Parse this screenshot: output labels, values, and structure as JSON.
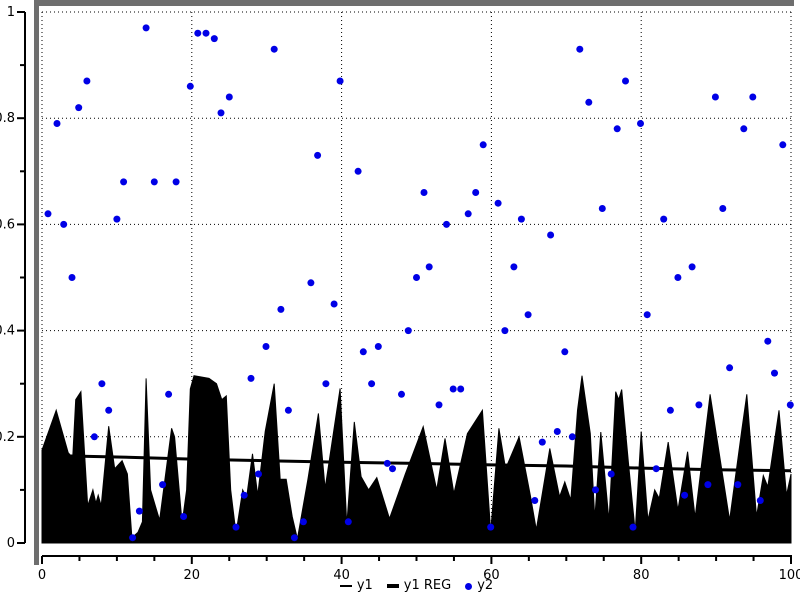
{
  "accent_colors": {
    "scatter_blue": "#0000e6",
    "series_black": "#000000",
    "frame_gray": "#6e6e6e",
    "background": "#ffffff"
  },
  "legend": {
    "items": [
      {
        "label": "y1",
        "marker": "thin-line"
      },
      {
        "label": "y1 REG",
        "marker": "thick-line"
      },
      {
        "label": "y2",
        "marker": "dot"
      }
    ]
  },
  "chart_data": {
    "type": "area",
    "title": "",
    "xlabel": "",
    "ylabel": "",
    "xlim": [
      0,
      100
    ],
    "ylim": [
      0,
      1
    ],
    "grid": "dotted",
    "legend_position": "bottom-center",
    "x_ticks": {
      "major": [
        0,
        20,
        40,
        60,
        80,
        100
      ],
      "labels": [
        "0",
        "20",
        "40",
        "60",
        "80",
        "100"
      ],
      "minor_step": 5
    },
    "y_ticks": {
      "major": [
        0,
        0.2,
        0.4,
        0.6,
        0.8,
        1
      ],
      "labels": [
        "0",
        "0.2",
        "0.4",
        "0.6",
        "0.8",
        "1"
      ],
      "minor_step": 0.1
    },
    "series": [
      {
        "name": "y1",
        "type": "area",
        "color": "#000000",
        "x": [
          0,
          1.9,
          3.5,
          4.1,
          4.5,
          5.2,
          6.1,
          6.8,
          7.2,
          7.5,
          7.9,
          8.9,
          9.7,
          10.7,
          11.4,
          12.0,
          12.8,
          13.4,
          13.9,
          14.5,
          15.7,
          17.3,
          17.7,
          18.7,
          19.3,
          19.8,
          20.3,
          22.3,
          23.3,
          24.0,
          24.6,
          25.2,
          25.9,
          26.8,
          27.3,
          28.1,
          28.8,
          29.8,
          31.0,
          31.8,
          32.6,
          33.4,
          34.1,
          35.5,
          36.9,
          37.8,
          39.8,
          40.7,
          41.7,
          42.6,
          43.6,
          44.7,
          46.4,
          48.5,
          50.9,
          52.7,
          53.8,
          55.0,
          56.8,
          58.8,
          59.9,
          61.0,
          61.9,
          63.7,
          65.2,
          66.0,
          67.8,
          69.1,
          69.8,
          70.6,
          71.5,
          72.1,
          73.2,
          73.8,
          74.6,
          75.7,
          76.6,
          77.0,
          77.4,
          78.3,
          79.2,
          80.0,
          80.9,
          81.8,
          82.4,
          83.6,
          84.9,
          86.2,
          87.2,
          89.2,
          91.8,
          93.4,
          94.1,
          95.4,
          96.3,
          96.9,
          98.4,
          99.4,
          100
        ],
        "y": [
          0.175,
          0.25,
          0.17,
          0.16,
          0.27,
          0.285,
          0.07,
          0.1,
          0.075,
          0.09,
          0.07,
          0.22,
          0.14,
          0.155,
          0.13,
          0.01,
          0.02,
          0.04,
          0.31,
          0.1,
          0.043,
          0.216,
          0.2,
          0.037,
          0.1,
          0.29,
          0.315,
          0.31,
          0.3,
          0.27,
          0.277,
          0.1,
          0.018,
          0.1,
          0.085,
          0.168,
          0.09,
          0.21,
          0.3,
          0.12,
          0.12,
          0.05,
          0.008,
          0.12,
          0.244,
          0.103,
          0.291,
          0.034,
          0.228,
          0.125,
          0.1,
          0.123,
          0.046,
          0.13,
          0.219,
          0.1,
          0.197,
          0.093,
          0.206,
          0.25,
          0.021,
          0.216,
          0.14,
          0.2,
          0.09,
          0.025,
          0.178,
          0.087,
          0.115,
          0.081,
          0.25,
          0.315,
          0.206,
          0.046,
          0.209,
          0.042,
          0.285,
          0.27,
          0.289,
          0.15,
          0.021,
          0.21,
          0.043,
          0.1,
          0.084,
          0.19,
          0.062,
          0.172,
          0.048,
          0.28,
          0.043,
          0.21,
          0.28,
          0.05,
          0.127,
          0.106,
          0.25,
          0.09,
          0.13
        ]
      },
      {
        "name": "y1 REG",
        "type": "line",
        "color": "#000000",
        "stroke_width": 3,
        "x": [
          0,
          10,
          20,
          30,
          40,
          50,
          60,
          70,
          80,
          90,
          100
        ],
        "y": [
          0.165,
          0.162,
          0.158,
          0.155,
          0.152,
          0.15,
          0.147,
          0.145,
          0.141,
          0.138,
          0.136
        ]
      },
      {
        "name": "y2",
        "type": "scatter",
        "color": "#0000e6",
        "x": [
          0.8,
          2.0,
          2.9,
          4.0,
          4.9,
          6.0,
          7.0,
          8.0,
          8.9,
          10.0,
          10.9,
          12.1,
          13.0,
          13.9,
          15.0,
          16.1,
          16.9,
          17.9,
          18.9,
          19.8,
          20.8,
          21.9,
          23.0,
          23.9,
          25.0,
          25.9,
          27.0,
          27.9,
          28.9,
          29.9,
          31.0,
          31.9,
          32.9,
          33.7,
          34.9,
          35.9,
          36.8,
          37.9,
          39.0,
          39.8,
          40.9,
          42.2,
          42.9,
          44.0,
          44.9,
          46.1,
          46.8,
          48.0,
          48.9,
          50.0,
          51.0,
          51.7,
          53.0,
          54.0,
          54.9,
          55.9,
          56.9,
          57.9,
          58.9,
          59.9,
          60.9,
          61.8,
          63.0,
          64.0,
          64.9,
          65.8,
          66.8,
          67.9,
          68.8,
          69.8,
          70.8,
          71.8,
          73.0,
          73.9,
          74.8,
          76.0,
          76.8,
          77.9,
          78.9,
          79.9,
          80.8,
          82.0,
          83.0,
          83.9,
          84.9,
          85.8,
          86.8,
          87.7,
          88.9,
          89.9,
          90.9,
          91.8,
          92.9,
          93.7,
          94.9,
          95.9,
          96.9,
          97.8,
          98.9,
          99.9
        ],
        "y": [
          0.62,
          0.79,
          0.6,
          0.5,
          0.82,
          0.87,
          0.2,
          0.3,
          0.25,
          0.61,
          0.68,
          0.01,
          0.06,
          0.97,
          0.68,
          0.11,
          0.28,
          0.68,
          0.05,
          0.86,
          0.96,
          0.96,
          0.95,
          0.81,
          0.84,
          0.03,
          0.09,
          0.31,
          0.13,
          0.37,
          0.93,
          0.44,
          0.25,
          0.01,
          0.04,
          0.49,
          0.73,
          0.3,
          0.45,
          0.87,
          0.04,
          0.7,
          0.36,
          0.3,
          0.37,
          0.15,
          0.14,
          0.28,
          0.4,
          0.5,
          0.66,
          0.52,
          0.26,
          0.6,
          0.29,
          0.29,
          0.62,
          0.66,
          0.75,
          0.03,
          0.64,
          0.4,
          0.52,
          0.61,
          0.43,
          0.08,
          0.19,
          0.58,
          0.21,
          0.36,
          0.2,
          0.93,
          0.83,
          0.1,
          0.63,
          0.13,
          0.78,
          0.87,
          0.03,
          0.79,
          0.43,
          0.14,
          0.61,
          0.25,
          0.5,
          0.09,
          0.52,
          0.26,
          0.11,
          0.84,
          0.63,
          0.33,
          0.11,
          0.78,
          0.84,
          0.08,
          0.38,
          0.32,
          0.75,
          0.26
        ]
      }
    ]
  }
}
